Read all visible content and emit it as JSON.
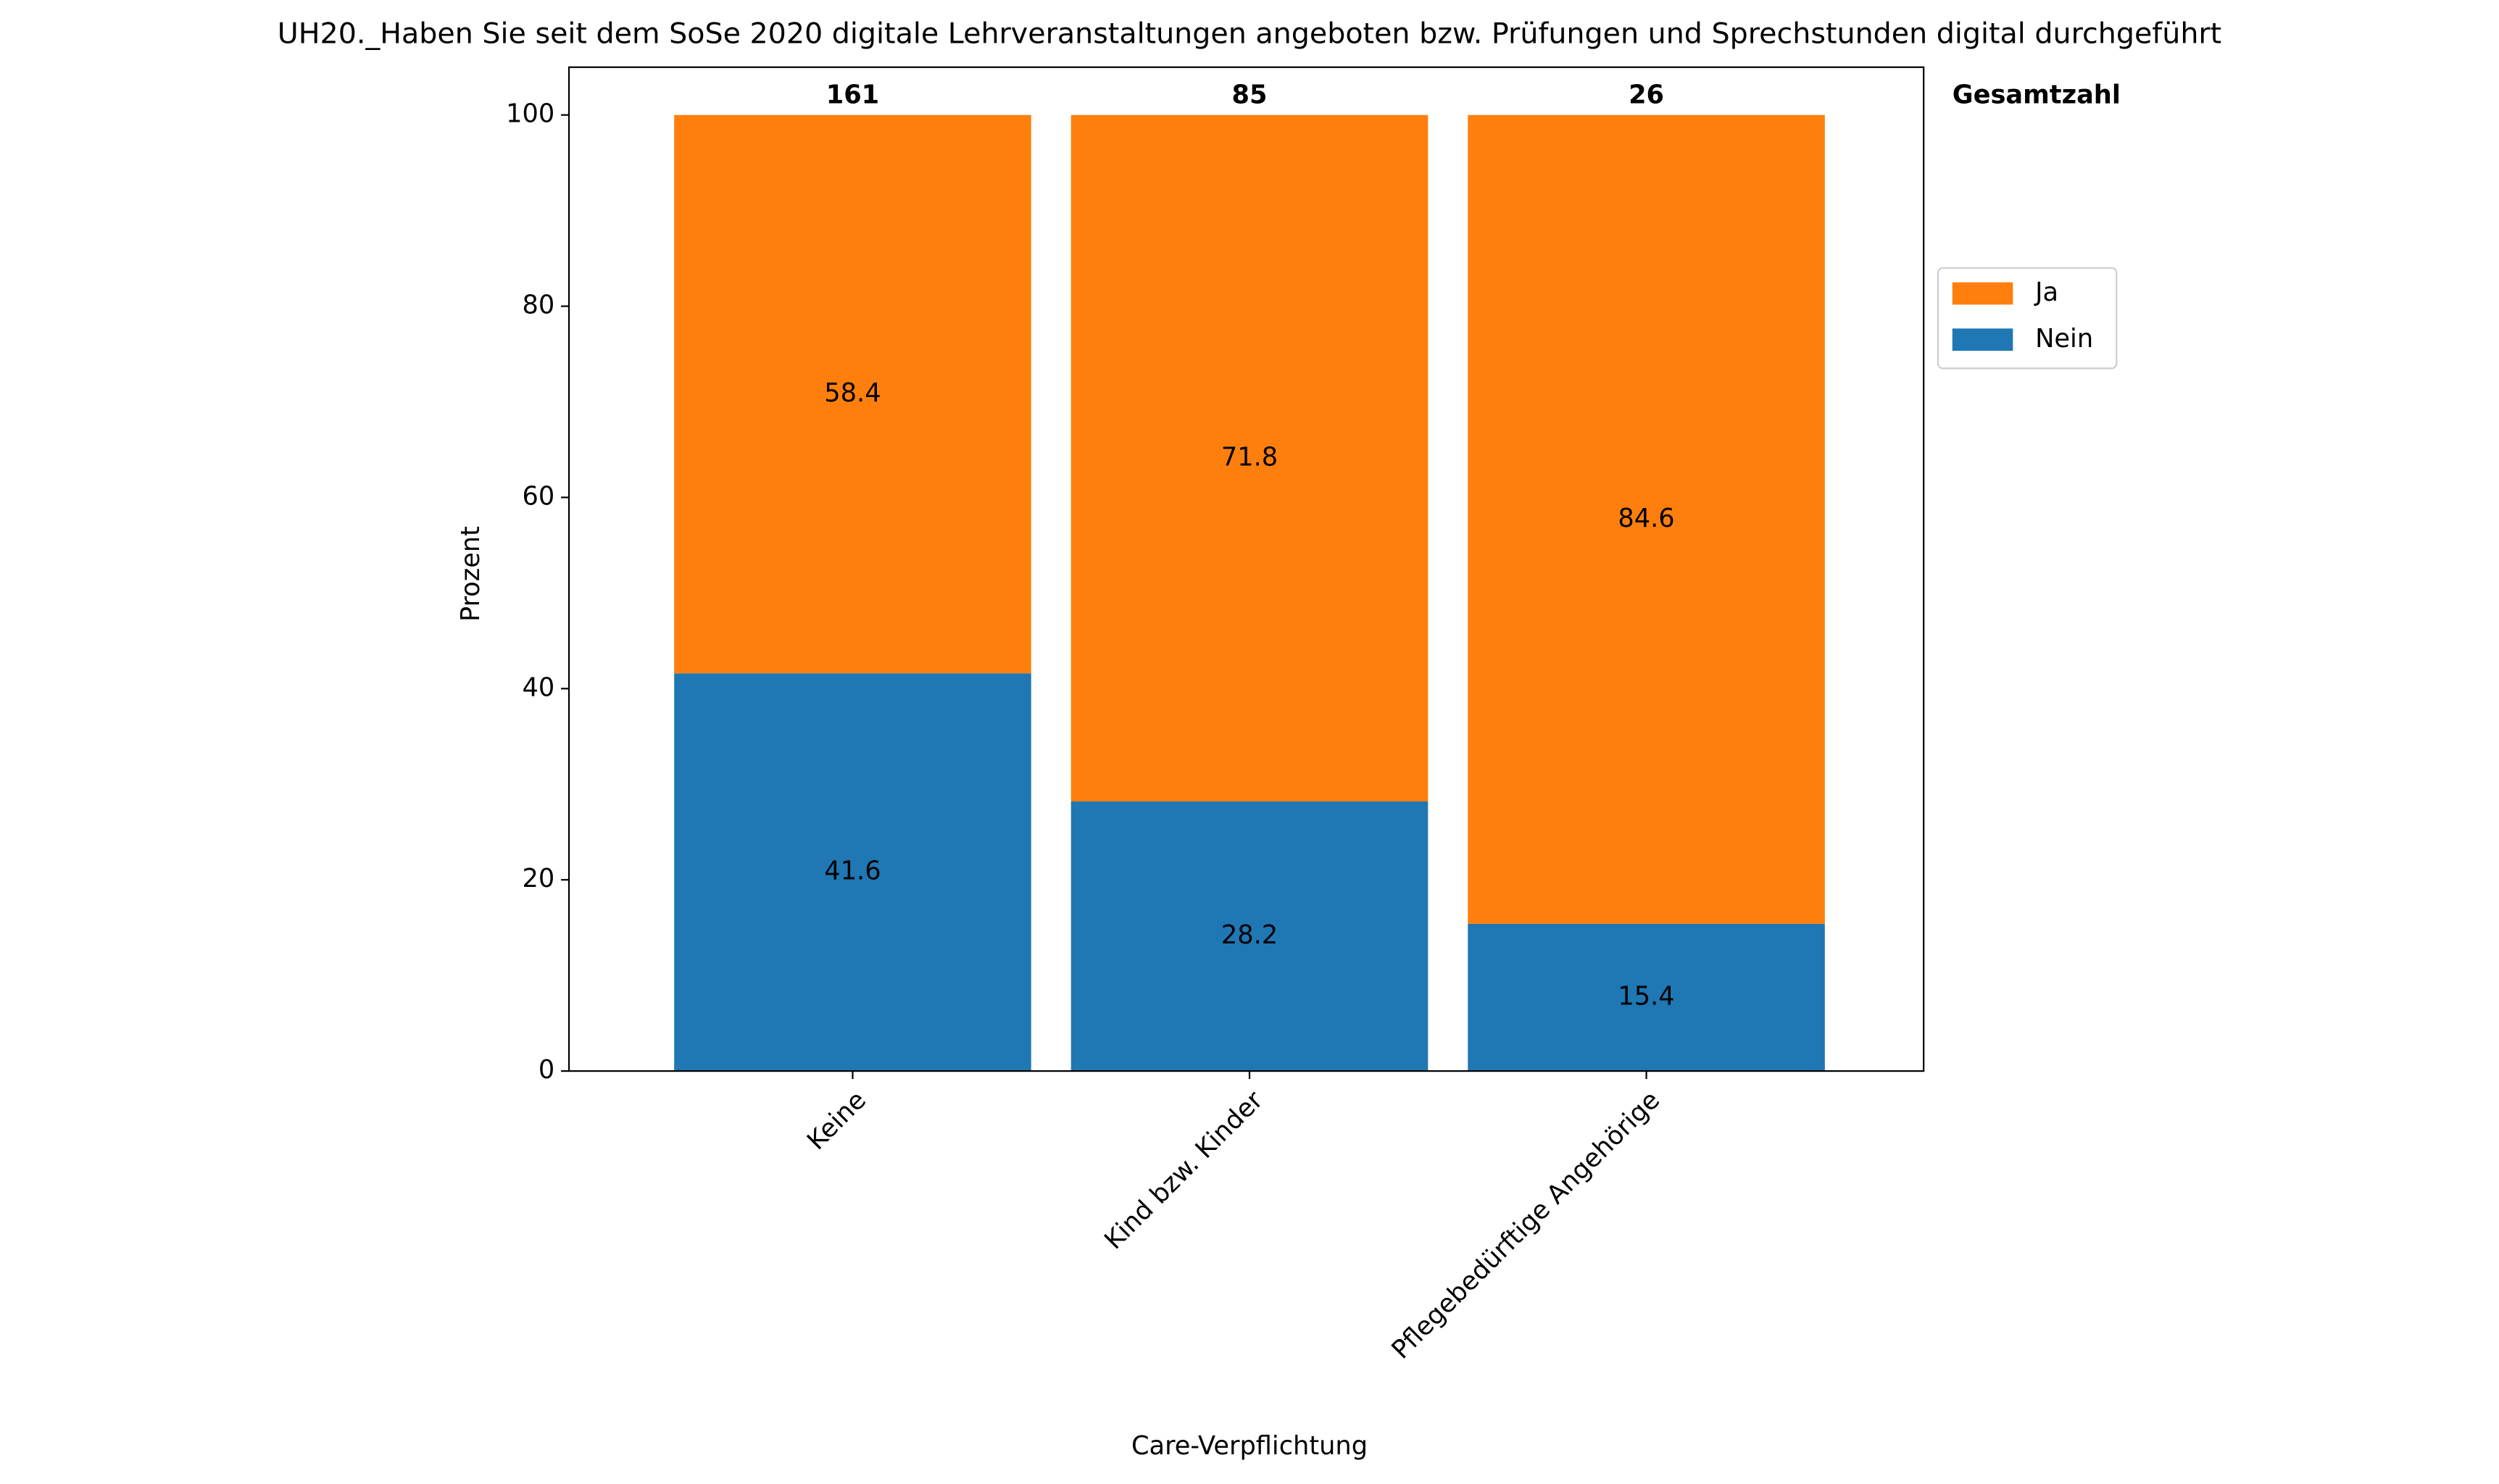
{
  "chart_data": {
    "type": "bar",
    "stacked": true,
    "title": "UH20._Haben Sie seit dem SoSe 2020 digitale Lehrveranstaltungen angeboten bzw. Prüfungen und Sprechstunden digital durchgeführt",
    "x_label": "Care-Verpflichtung",
    "y_label": "Prozent",
    "categories": [
      "Keine",
      "Kind bzw. Kinder",
      "Pflegebedürftige Angehörige"
    ],
    "series": [
      {
        "name": "Nein",
        "color": "#1f77b4",
        "values": [
          41.6,
          28.2,
          15.4
        ]
      },
      {
        "name": "Ja",
        "color": "#ff7f0e",
        "values": [
          58.4,
          71.8,
          84.6
        ]
      }
    ],
    "totals": {
      "label": "Gesamtzahl",
      "values": [
        161,
        85,
        26
      ]
    },
    "ylim": [
      0,
      105
    ],
    "yticks": [
      0,
      20,
      40,
      60,
      80,
      100
    ],
    "grid": false
  }
}
